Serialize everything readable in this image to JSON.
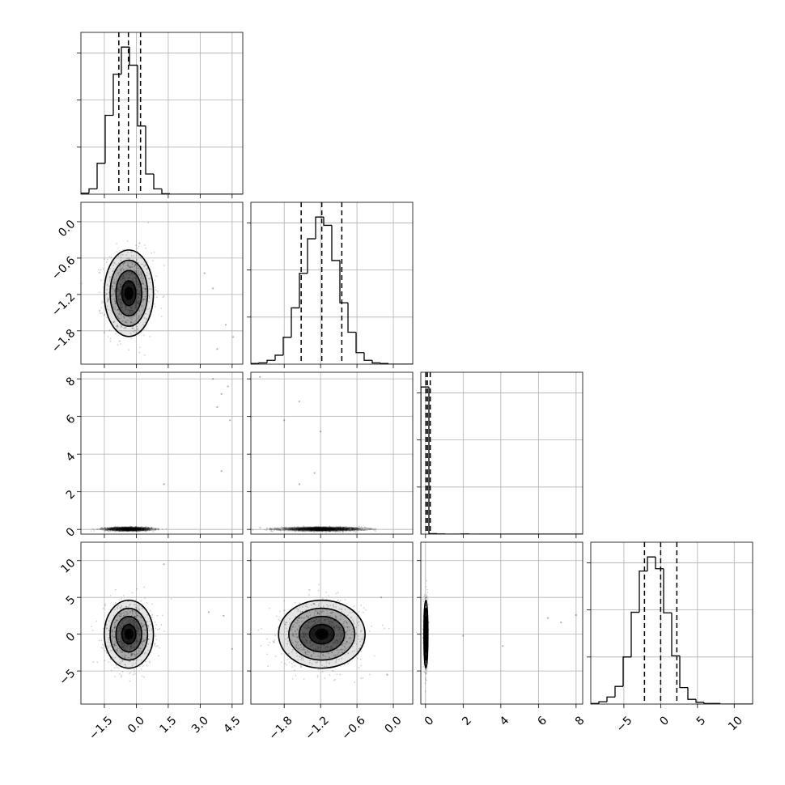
{
  "chart_data": {
    "type": "corner",
    "parameters": [
      {
        "index": 0,
        "range": [
          -2.6,
          5.0
        ],
        "ticks": [
          -1.5,
          0.0,
          1.5,
          3.0,
          4.5
        ],
        "tick_labels": [
          "−1.5",
          "0.0",
          "1.5",
          "3.0",
          "4.5"
        ],
        "quantiles": [
          -0.82,
          -0.37,
          0.2
        ]
      },
      {
        "index": 1,
        "range": [
          -2.35,
          0.32
        ],
        "ticks": [
          -1.8,
          -1.2,
          -0.6,
          0.0
        ],
        "tick_labels": [
          "−1.8",
          "−1.2",
          "−0.6",
          "0.0"
        ],
        "quantiles": [
          -1.52,
          -1.18,
          -0.85
        ]
      },
      {
        "index": 2,
        "range": [
          -0.25,
          8.35
        ],
        "ticks": [
          0,
          2,
          4,
          6,
          8
        ],
        "tick_labels": [
          "0",
          "2",
          "4",
          "6",
          "8"
        ],
        "quantiles": [
          0.02,
          0.1,
          0.25
        ]
      },
      {
        "index": 3,
        "range": [
          -9.5,
          12.5
        ],
        "ticks": [
          -5,
          0,
          5,
          10
        ],
        "tick_labels": [
          "−5",
          "0",
          "5",
          "10"
        ],
        "quantiles": [
          -2.2,
          0.0,
          2.2
        ]
      }
    ],
    "histograms": [
      {
        "param": 0,
        "bin_edges": [
          -2.6,
          -2.22,
          -1.84,
          -1.46,
          -1.08,
          -0.7,
          -0.32,
          0.06,
          0.44,
          0.82,
          1.2,
          1.58,
          1.96,
          2.34,
          2.72,
          3.1,
          3.48,
          3.86,
          4.24,
          4.62,
          5.0
        ],
        "counts": [
          2,
          10,
          58,
          148,
          225,
          276,
          242,
          128,
          38,
          10,
          1,
          0,
          0,
          0,
          0,
          0,
          0,
          0,
          0,
          0
        ]
      },
      {
        "param": 1,
        "bin_edges": [
          -2.35,
          -2.2165,
          -2.083,
          -1.9495,
          -1.816,
          -1.6825,
          -1.549,
          -1.4155,
          -1.282,
          -1.1485,
          -1.015,
          -0.8815,
          -0.748,
          -0.6145,
          -0.481,
          -0.3475,
          -0.214,
          -0.0805,
          0.053,
          0.1865,
          0.32
        ],
        "counts": [
          1,
          2,
          6,
          14,
          42,
          88,
          142,
          196,
          230,
          217,
          162,
          96,
          50,
          18,
          6,
          2,
          1,
          0,
          0,
          0
        ]
      },
      {
        "param": 2,
        "bin_edges": [
          -0.25,
          0.18,
          0.61,
          1.04,
          1.47,
          1.9,
          2.33,
          2.76,
          3.19,
          3.62,
          4.05,
          4.48,
          4.91,
          5.34,
          5.77,
          6.2,
          6.63,
          7.06,
          7.49,
          7.92,
          8.35
        ],
        "counts": [
          1000,
          3,
          1,
          0,
          0,
          1,
          0,
          0,
          0,
          0,
          0,
          0,
          0,
          0,
          0,
          0,
          0,
          0,
          0,
          0
        ]
      },
      {
        "param": 3,
        "bin_edges": [
          -9.5,
          -8.4,
          -7.3,
          -6.2,
          -5.1,
          -4.0,
          -2.9,
          -1.8,
          -0.7,
          0.4,
          1.5,
          2.6,
          3.7,
          4.8,
          5.9,
          7.0,
          8.1,
          9.2,
          10.3,
          11.4,
          12.5
        ],
        "counts": [
          1,
          4,
          12,
          30,
          80,
          156,
          226,
          250,
          230,
          155,
          82,
          28,
          8,
          3,
          1,
          1,
          0,
          0,
          0,
          0
        ]
      }
    ],
    "pairs": [
      {
        "x": 0,
        "y": 1,
        "center": [
          -0.35,
          -1.18
        ],
        "sigma": [
          0.55,
          0.34
        ]
      },
      {
        "x": 0,
        "y": 2,
        "center": [
          -0.35,
          0.02
        ],
        "sigma": [
          0.55,
          0.05
        ]
      },
      {
        "x": 0,
        "y": 3,
        "center": [
          -0.35,
          0.0
        ],
        "sigma": [
          0.55,
          2.2
        ]
      },
      {
        "x": 1,
        "y": 2,
        "center": [
          -1.18,
          0.02
        ],
        "sigma": [
          0.34,
          0.05
        ]
      },
      {
        "x": 1,
        "y": 3,
        "center": [
          -1.18,
          0.0
        ],
        "sigma": [
          0.34,
          2.2
        ]
      },
      {
        "x": 2,
        "y": 3,
        "center": [
          0.02,
          0.0
        ],
        "sigma": [
          0.05,
          2.2
        ]
      }
    ],
    "outliers": [
      {
        "x": 0,
        "y": 1,
        "points": [
          [
            3.2,
            -0.85
          ],
          [
            3.6,
            -1.1
          ],
          [
            4.2,
            -1.7
          ],
          [
            4.55,
            -1.9
          ],
          [
            3.8,
            -2.1
          ]
        ]
      },
      {
        "x": 0,
        "y": 2,
        "points": [
          [
            3.6,
            8.0
          ],
          [
            4.3,
            7.6
          ],
          [
            4.0,
            7.2
          ],
          [
            3.8,
            6.5
          ],
          [
            4.4,
            5.8
          ],
          [
            4.0,
            3.1
          ],
          [
            1.3,
            2.4
          ]
        ]
      },
      {
        "x": 1,
        "y": 2,
        "points": [
          [
            -2.2,
            8.1
          ],
          [
            -1.55,
            6.8
          ],
          [
            -1.8,
            5.8
          ],
          [
            -1.2,
            5.2
          ],
          [
            -1.55,
            2.4
          ],
          [
            -1.3,
            3.0
          ]
        ]
      },
      {
        "x": 0,
        "y": 3,
        "points": [
          [
            3.4,
            3.0
          ],
          [
            4.1,
            2.5
          ],
          [
            4.5,
            -2.0
          ],
          [
            1.3,
            9.5
          ]
        ]
      },
      {
        "x": 1,
        "y": 3,
        "points": [
          [
            -0.2,
            5.0
          ],
          [
            -0.1,
            -5.5
          ]
        ]
      },
      {
        "x": 2,
        "y": 3,
        "points": [
          [
            6.5,
            2.2
          ],
          [
            7.2,
            1.6
          ],
          [
            4.1,
            -1.6
          ],
          [
            8.0,
            2.6
          ],
          [
            2.0,
            -0.2
          ]
        ]
      }
    ],
    "grid": true,
    "legend": "none"
  }
}
